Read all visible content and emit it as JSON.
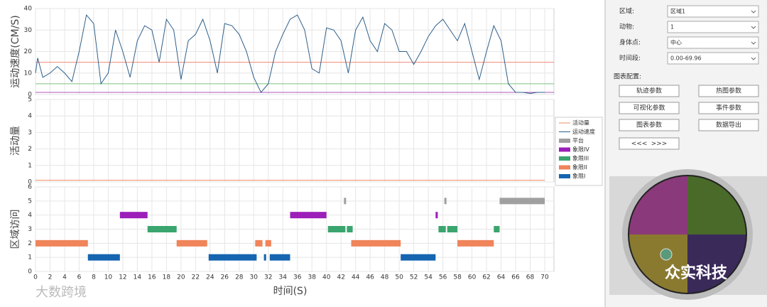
{
  "chart_data": [
    {
      "type": "line",
      "ylabel": "运动速度(CM/S)",
      "ylim": [
        0,
        40
      ],
      "yticks": [
        0,
        10,
        20,
        30,
        40
      ],
      "grid": true,
      "reference_lines": [
        {
          "value": 15,
          "color": "#f08a7a"
        },
        {
          "value": 5,
          "color": "#7cc47c"
        },
        {
          "value": 1,
          "color": "#b05ab8"
        }
      ],
      "series": [
        {
          "name": "运动速度",
          "color": "#2e5f8a",
          "x": [
            0,
            0.3,
            1,
            2,
            3,
            4,
            5,
            6,
            7,
            8,
            9,
            10,
            11,
            12,
            13,
            14,
            15,
            16,
            17,
            18,
            19,
            20,
            21,
            22,
            23,
            24,
            25,
            26,
            27,
            28,
            29,
            30,
            31,
            32,
            33,
            34,
            35,
            36,
            37,
            38,
            39,
            40,
            41,
            42,
            43,
            44,
            45,
            46,
            47,
            48,
            49,
            50,
            51,
            52,
            53,
            54,
            55,
            56,
            57,
            58,
            59,
            60,
            61,
            62,
            63,
            64,
            65,
            66,
            67,
            68,
            69,
            70
          ],
          "values": [
            10,
            17,
            8,
            10,
            13,
            10,
            6,
            20,
            37,
            33,
            5,
            10,
            30,
            20,
            8,
            25,
            32,
            30,
            15,
            35,
            30,
            7,
            25,
            28,
            35,
            25,
            10,
            33,
            32,
            28,
            20,
            8,
            1,
            5,
            20,
            28,
            35,
            37,
            30,
            12,
            10,
            31,
            30,
            25,
            10,
            30,
            36,
            25,
            20,
            33,
            30,
            20,
            20,
            14,
            20,
            27,
            32,
            35,
            30,
            25,
            33,
            20,
            7,
            20,
            32,
            25,
            5,
            1,
            1,
            0.5,
            1,
            1
          ]
        }
      ]
    },
    {
      "type": "line",
      "ylabel": "活动量",
      "ylim": [
        0,
        5
      ],
      "yticks": [
        0,
        1,
        2,
        3,
        4,
        5
      ],
      "grid": true,
      "series": [
        {
          "name": "活动量",
          "color": "#f08a60",
          "x": [
            0,
            70
          ],
          "values": [
            0.1,
            0.1
          ]
        }
      ]
    },
    {
      "type": "timeline",
      "ylabel": "区域访问",
      "xlabel": "时间(S)",
      "xlim": [
        0,
        70
      ],
      "xticks": [
        0,
        2,
        4,
        6,
        8,
        10,
        12,
        14,
        16,
        18,
        20,
        22,
        24,
        26,
        28,
        30,
        32,
        34,
        36,
        38,
        40,
        42,
        44,
        46,
        48,
        50,
        52,
        54,
        56,
        58,
        60,
        62,
        64,
        66,
        68,
        70
      ],
      "ylim": [
        0,
        6
      ],
      "yticks": [
        0,
        1,
        2,
        3,
        4,
        5,
        6
      ],
      "grid": true,
      "series": [
        {
          "name": "象限I",
          "color": "#1565b0",
          "row": 1,
          "intervals": [
            [
              7.2,
              11.6
            ],
            [
              23.8,
              30.4
            ],
            [
              31.4,
              31.7
            ],
            [
              32.2,
              35.0
            ],
            [
              50.2,
              55.0
            ]
          ]
        },
        {
          "name": "象限II",
          "color": "#f0845a",
          "row": 2,
          "intervals": [
            [
              0,
              7.2
            ],
            [
              19.4,
              23.6
            ],
            [
              30.2,
              31.2
            ],
            [
              31.6,
              32.4
            ],
            [
              43.4,
              50.2
            ],
            [
              58,
              63
            ]
          ]
        },
        {
          "name": "象限III",
          "color": "#3aa56e",
          "row": 3,
          "intervals": [
            [
              15.4,
              19.4
            ],
            [
              40.2,
              42.6
            ],
            [
              42.8,
              43.6
            ],
            [
              55.4,
              56.4
            ],
            [
              56.6,
              58.0
            ],
            [
              63.0,
              63.8
            ]
          ]
        },
        {
          "name": "象限IV",
          "color": "#9b1fb8",
          "row": 4,
          "intervals": [
            [
              11.6,
              15.4
            ],
            [
              35.0,
              40.0
            ],
            [
              55.0,
              55.3
            ]
          ]
        },
        {
          "name": "平台",
          "color": "#a0a0a0",
          "row": 5,
          "intervals": [
            [
              42.4,
              42.7
            ],
            [
              56.2,
              56.5
            ],
            [
              63.8,
              70
            ]
          ]
        }
      ]
    }
  ],
  "form": {
    "fields": [
      {
        "label": "区域:",
        "value": "区域1"
      },
      {
        "label": "动物:",
        "value": "1"
      },
      {
        "label": "身体点:",
        "value": "中心"
      },
      {
        "label": "时间段:",
        "value": "0.00-69.96"
      }
    ]
  },
  "chart_config": {
    "title": "图表配置:",
    "buttons": [
      "轨迹参数",
      "热图参数",
      "可视化参数",
      "事件参数",
      "图表参数",
      "数据导出"
    ],
    "nav": [
      "<<<",
      ">>>"
    ]
  },
  "watermarks": [
    "大数跨境",
    "众实科技"
  ]
}
